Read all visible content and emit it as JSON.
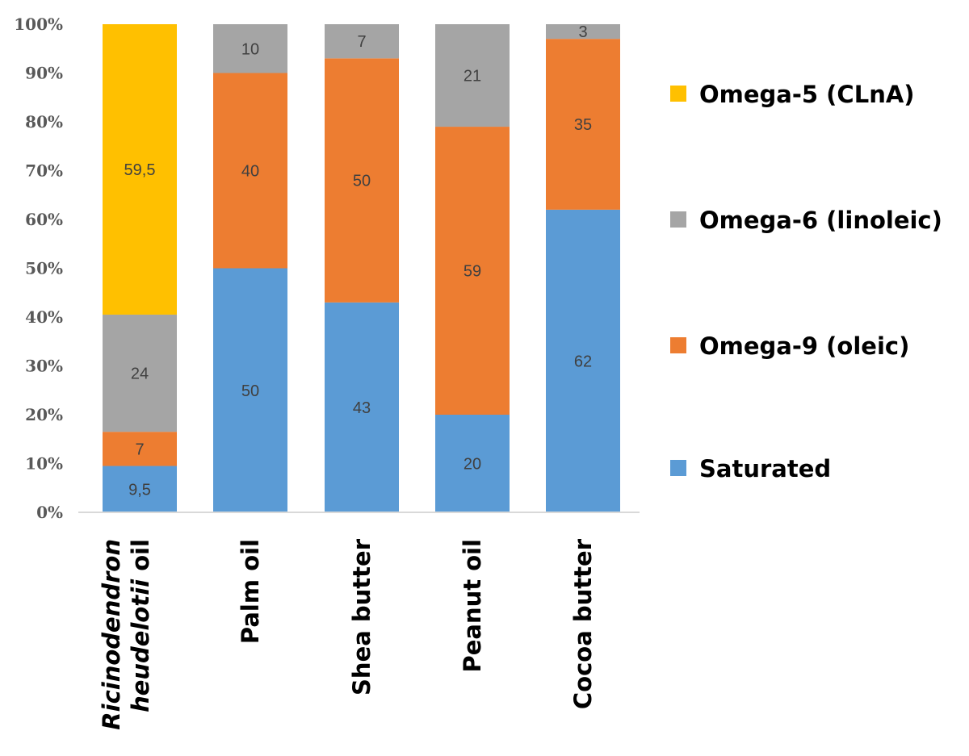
{
  "chart_data": {
    "type": "bar",
    "stacked": true,
    "percent": true,
    "title": "",
    "xlabel": "",
    "ylabel": "",
    "ylim": [
      0,
      100
    ],
    "yticks": [
      "0%",
      "10%",
      "20%",
      "30%",
      "40%",
      "50%",
      "60%",
      "70%",
      "80%",
      "90%",
      "100%"
    ],
    "categories": [
      {
        "label": "Ricinodendron heudelotii oil",
        "italic_part": "Ricinodendron heudelotii",
        "plain_part": " oil"
      },
      {
        "label": "Palm oil"
      },
      {
        "label": "Shea butter"
      },
      {
        "label": "Peanut oil"
      },
      {
        "label": "Cocoa butter"
      }
    ],
    "series": [
      {
        "name": "Saturated",
        "color": "#5b9bd5",
        "values": [
          9.5,
          50,
          43,
          20,
          62
        ],
        "labels": [
          "9,5",
          "50",
          "43",
          "20",
          "62"
        ]
      },
      {
        "name": "Omega-9 (oleic)",
        "color": "#ed7d31",
        "values": [
          7,
          40,
          50,
          59,
          35
        ],
        "labels": [
          "7",
          "40",
          "50",
          "59",
          "35"
        ]
      },
      {
        "name": "Omega-6 (linoleic)",
        "color": "#a5a5a5",
        "values": [
          24,
          10,
          7,
          21,
          3
        ],
        "labels": [
          "24",
          "10",
          "7",
          "21",
          "3"
        ]
      },
      {
        "name": "Omega-5 (CLnA)",
        "color": "#ffc000",
        "values": [
          59.5,
          0,
          0,
          0,
          0
        ],
        "labels": [
          "59,5",
          "",
          "",
          "",
          ""
        ]
      }
    ],
    "legend": {
      "position": "right",
      "order": [
        "Omega-5 (CLnA)",
        "Omega-6 (linoleic)",
        "Omega-9 (oleic)",
        "Saturated"
      ]
    }
  }
}
